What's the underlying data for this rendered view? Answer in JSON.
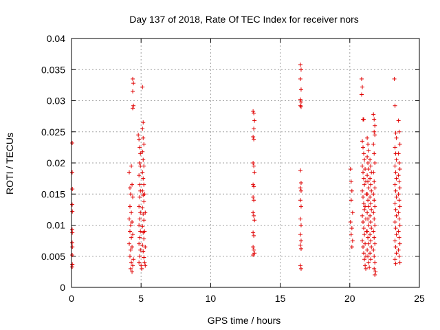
{
  "chart_data": {
    "type": "scatter",
    "title": "Day 137 of 2018, Rate Of TEC Index for receiver nors",
    "xlabel": "GPS time / hours",
    "ylabel": "ROTI / TECUs",
    "xlim": [
      0,
      25
    ],
    "ylim": [
      0,
      0.04
    ],
    "x_ticks": [
      0,
      5,
      10,
      15,
      20,
      25
    ],
    "x_tick_labels": [
      "0",
      "5",
      "10",
      "15",
      "20",
      "25"
    ],
    "y_ticks": [
      0,
      0.005,
      0.01,
      0.015,
      0.02,
      0.025,
      0.03,
      0.035,
      0.04
    ],
    "y_tick_labels": [
      "0",
      "0.005",
      "0.01",
      "0.015",
      "0.02",
      "0.025",
      "0.03",
      "0.035",
      "0.04"
    ],
    "grid": true,
    "marker": "+",
    "color": "#e00000",
    "series": [
      {
        "name": "ROTI",
        "points": [
          [
            0.05,
            0.0232
          ],
          [
            0.05,
            0.0185
          ],
          [
            0.06,
            0.0158
          ],
          [
            0.05,
            0.0133
          ],
          [
            0.06,
            0.0122
          ],
          [
            0.05,
            0.0093
          ],
          [
            0.06,
            0.0088
          ],
          [
            0.05,
            0.0072
          ],
          [
            0.06,
            0.0065
          ],
          [
            0.05,
            0.0052
          ],
          [
            0.06,
            0.0037
          ],
          [
            0.05,
            0.0033
          ],
          [
            4.15,
            0.0185
          ],
          [
            4.2,
            0.016
          ],
          [
            4.25,
            0.015
          ],
          [
            4.2,
            0.013
          ],
          [
            4.3,
            0.012
          ],
          [
            4.15,
            0.011
          ],
          [
            4.25,
            0.01
          ],
          [
            4.2,
            0.009
          ],
          [
            4.3,
            0.008
          ],
          [
            4.15,
            0.007
          ],
          [
            4.25,
            0.006
          ],
          [
            4.2,
            0.005
          ],
          [
            4.3,
            0.004
          ],
          [
            4.25,
            0.003
          ],
          [
            4.35,
            0.0025
          ],
          [
            4.4,
            0.0335
          ],
          [
            4.45,
            0.0328
          ],
          [
            4.4,
            0.0315
          ],
          [
            4.45,
            0.0292
          ],
          [
            4.4,
            0.0288
          ],
          [
            4.3,
            0.0195
          ],
          [
            4.35,
            0.0165
          ],
          [
            4.4,
            0.0145
          ],
          [
            4.35,
            0.0105
          ],
          [
            4.4,
            0.0085
          ],
          [
            4.35,
            0.0065
          ],
          [
            4.45,
            0.0045
          ],
          [
            4.4,
            0.0035
          ],
          [
            4.8,
            0.0245
          ],
          [
            4.85,
            0.0238
          ],
          [
            4.9,
            0.0225
          ],
          [
            4.95,
            0.0215
          ],
          [
            4.9,
            0.02
          ],
          [
            4.95,
            0.0195
          ],
          [
            4.85,
            0.018
          ],
          [
            4.9,
            0.0165
          ],
          [
            4.95,
            0.0155
          ],
          [
            4.9,
            0.0145
          ],
          [
            4.85,
            0.013
          ],
          [
            4.95,
            0.012
          ],
          [
            4.9,
            0.011
          ],
          [
            4.85,
            0.01
          ],
          [
            4.95,
            0.009
          ],
          [
            4.9,
            0.008
          ],
          [
            4.85,
            0.007
          ],
          [
            4.95,
            0.006
          ],
          [
            4.9,
            0.005
          ],
          [
            4.85,
            0.004
          ],
          [
            5.0,
            0.0035
          ],
          [
            5.05,
            0.003
          ],
          [
            5.1,
            0.0322
          ],
          [
            5.15,
            0.0265
          ],
          [
            5.1,
            0.0255
          ],
          [
            5.15,
            0.024
          ],
          [
            5.2,
            0.023
          ],
          [
            5.1,
            0.0218
          ],
          [
            5.15,
            0.0205
          ],
          [
            5.2,
            0.0195
          ],
          [
            5.1,
            0.0185
          ],
          [
            5.15,
            0.0175
          ],
          [
            5.2,
            0.0165
          ],
          [
            5.1,
            0.0155
          ],
          [
            5.15,
            0.0148
          ],
          [
            5.2,
            0.0138
          ],
          [
            5.1,
            0.0128
          ],
          [
            5.15,
            0.0118
          ],
          [
            5.2,
            0.0108
          ],
          [
            5.1,
            0.0098
          ],
          [
            5.15,
            0.0088
          ],
          [
            5.2,
            0.0078
          ],
          [
            5.1,
            0.0068
          ],
          [
            5.15,
            0.0058
          ],
          [
            5.2,
            0.0048
          ],
          [
            5.25,
            0.004
          ],
          [
            5.3,
            0.0035
          ],
          [
            5.25,
            0.015
          ],
          [
            5.3,
            0.012
          ],
          [
            5.25,
            0.009
          ],
          [
            5.3,
            0.0065
          ],
          [
            13.05,
            0.0283
          ],
          [
            13.1,
            0.028
          ],
          [
            13.15,
            0.0268
          ],
          [
            13.1,
            0.0255
          ],
          [
            13.05,
            0.0242
          ],
          [
            13.1,
            0.0238
          ],
          [
            13.05,
            0.02
          ],
          [
            13.1,
            0.0195
          ],
          [
            13.15,
            0.0185
          ],
          [
            13.05,
            0.0165
          ],
          [
            13.1,
            0.0162
          ],
          [
            13.05,
            0.0145
          ],
          [
            13.1,
            0.014
          ],
          [
            13.05,
            0.012
          ],
          [
            13.1,
            0.0115
          ],
          [
            13.15,
            0.0108
          ],
          [
            13.05,
            0.0088
          ],
          [
            13.1,
            0.0083
          ],
          [
            13.05,
            0.0065
          ],
          [
            13.1,
            0.006
          ],
          [
            13.15,
            0.0055
          ],
          [
            13.05,
            0.0052
          ],
          [
            16.45,
            0.0358
          ],
          [
            16.5,
            0.035
          ],
          [
            16.45,
            0.0335
          ],
          [
            16.5,
            0.0318
          ],
          [
            16.45,
            0.0302
          ],
          [
            16.5,
            0.0298
          ],
          [
            16.45,
            0.0292
          ],
          [
            16.5,
            0.029
          ],
          [
            16.45,
            0.0188
          ],
          [
            16.5,
            0.0168
          ],
          [
            16.45,
            0.016
          ],
          [
            16.5,
            0.0155
          ],
          [
            16.45,
            0.014
          ],
          [
            16.5,
            0.013
          ],
          [
            16.45,
            0.011
          ],
          [
            16.5,
            0.01
          ],
          [
            16.45,
            0.0085
          ],
          [
            16.5,
            0.0075
          ],
          [
            16.45,
            0.0068
          ],
          [
            16.5,
            0.0062
          ],
          [
            16.45,
            0.0035
          ],
          [
            16.5,
            0.003
          ],
          [
            20.05,
            0.019
          ],
          [
            20.1,
            0.017
          ],
          [
            20.15,
            0.0155
          ],
          [
            20.1,
            0.014
          ],
          [
            20.2,
            0.012
          ],
          [
            20.05,
            0.0105
          ],
          [
            20.15,
            0.0095
          ],
          [
            20.1,
            0.0085
          ],
          [
            20.2,
            0.0075
          ],
          [
            20.15,
            0.0065
          ],
          [
            20.85,
            0.0335
          ],
          [
            20.9,
            0.0322
          ],
          [
            20.85,
            0.031
          ],
          [
            20.95,
            0.027
          ],
          [
            21.0,
            0.027
          ],
          [
            20.9,
            0.0235
          ],
          [
            20.95,
            0.0225
          ],
          [
            21.0,
            0.0215
          ],
          [
            21.05,
            0.0205
          ],
          [
            20.9,
            0.0195
          ],
          [
            20.95,
            0.0185
          ],
          [
            21.0,
            0.0175
          ],
          [
            21.05,
            0.0165
          ],
          [
            20.9,
            0.0155
          ],
          [
            20.95,
            0.0145
          ],
          [
            21.0,
            0.0135
          ],
          [
            21.05,
            0.0125
          ],
          [
            20.9,
            0.0115
          ],
          [
            20.95,
            0.0105
          ],
          [
            21.0,
            0.0095
          ],
          [
            21.05,
            0.0085
          ],
          [
            20.9,
            0.0075
          ],
          [
            20.95,
            0.0065
          ],
          [
            21.0,
            0.0055
          ],
          [
            21.05,
            0.0045
          ],
          [
            21.1,
            0.0035
          ],
          [
            21.15,
            0.003
          ],
          [
            21.1,
            0.019
          ],
          [
            21.15,
            0.017
          ],
          [
            21.2,
            0.015
          ],
          [
            21.1,
            0.013
          ],
          [
            21.15,
            0.011
          ],
          [
            21.2,
            0.009
          ],
          [
            21.1,
            0.007
          ],
          [
            21.15,
            0.005
          ],
          [
            21.25,
            0.024
          ],
          [
            21.3,
            0.023
          ],
          [
            21.35,
            0.022
          ],
          [
            21.25,
            0.021
          ],
          [
            21.3,
            0.02
          ],
          [
            21.35,
            0.019
          ],
          [
            21.25,
            0.018
          ],
          [
            21.3,
            0.017
          ],
          [
            21.35,
            0.016
          ],
          [
            21.25,
            0.015
          ],
          [
            21.3,
            0.014
          ],
          [
            21.35,
            0.013
          ],
          [
            21.25,
            0.012
          ],
          [
            21.3,
            0.011
          ],
          [
            21.35,
            0.01
          ],
          [
            21.25,
            0.009
          ],
          [
            21.3,
            0.008
          ],
          [
            21.35,
            0.007
          ],
          [
            21.25,
            0.006
          ],
          [
            21.3,
            0.005
          ],
          [
            21.35,
            0.004
          ],
          [
            21.4,
            0.0032
          ],
          [
            21.45,
            0.0205
          ],
          [
            21.5,
            0.0195
          ],
          [
            21.55,
            0.0185
          ],
          [
            21.45,
            0.0175
          ],
          [
            21.5,
            0.0165
          ],
          [
            21.55,
            0.0155
          ],
          [
            21.45,
            0.0145
          ],
          [
            21.5,
            0.0135
          ],
          [
            21.55,
            0.0125
          ],
          [
            21.45,
            0.0115
          ],
          [
            21.5,
            0.0105
          ],
          [
            21.55,
            0.0095
          ],
          [
            21.45,
            0.0085
          ],
          [
            21.5,
            0.0075
          ],
          [
            21.55,
            0.0065
          ],
          [
            21.45,
            0.0055
          ],
          [
            21.5,
            0.0045
          ],
          [
            21.7,
            0.0278
          ],
          [
            21.75,
            0.027
          ],
          [
            21.8,
            0.026
          ],
          [
            21.75,
            0.025
          ],
          [
            21.8,
            0.0245
          ],
          [
            21.7,
            0.023
          ],
          [
            21.75,
            0.0215
          ],
          [
            21.8,
            0.02
          ],
          [
            21.7,
            0.0185
          ],
          [
            21.75,
            0.017
          ],
          [
            21.8,
            0.016
          ],
          [
            21.7,
            0.015
          ],
          [
            21.75,
            0.014
          ],
          [
            21.8,
            0.013
          ],
          [
            21.7,
            0.012
          ],
          [
            21.75,
            0.011
          ],
          [
            21.8,
            0.01
          ],
          [
            21.7,
            0.009
          ],
          [
            21.75,
            0.008
          ],
          [
            21.8,
            0.007
          ],
          [
            21.7,
            0.006
          ],
          [
            21.75,
            0.005
          ],
          [
            21.8,
            0.004
          ],
          [
            21.75,
            0.003
          ],
          [
            21.8,
            0.002
          ],
          [
            21.85,
            0.0025
          ],
          [
            23.2,
            0.0335
          ],
          [
            23.25,
            0.0292
          ],
          [
            23.3,
            0.0248
          ],
          [
            23.35,
            0.024
          ],
          [
            23.25,
            0.0225
          ],
          [
            23.3,
            0.0215
          ],
          [
            23.35,
            0.0205
          ],
          [
            23.25,
            0.0195
          ],
          [
            23.3,
            0.0185
          ],
          [
            23.35,
            0.0175
          ],
          [
            23.25,
            0.0165
          ],
          [
            23.3,
            0.0155
          ],
          [
            23.35,
            0.0145
          ],
          [
            23.25,
            0.0135
          ],
          [
            23.3,
            0.0125
          ],
          [
            23.35,
            0.0115
          ],
          [
            23.25,
            0.0105
          ],
          [
            23.3,
            0.0095
          ],
          [
            23.35,
            0.0085
          ],
          [
            23.25,
            0.0075
          ],
          [
            23.3,
            0.0065
          ],
          [
            23.35,
            0.0055
          ],
          [
            23.25,
            0.0045
          ],
          [
            23.3,
            0.0038
          ],
          [
            23.5,
            0.0268
          ],
          [
            23.55,
            0.025
          ],
          [
            23.6,
            0.023
          ],
          [
            23.5,
            0.0215
          ],
          [
            23.55,
            0.02
          ],
          [
            23.6,
            0.019
          ],
          [
            23.5,
            0.018
          ],
          [
            23.55,
            0.017
          ],
          [
            23.6,
            0.016
          ],
          [
            23.5,
            0.015
          ],
          [
            23.55,
            0.014
          ],
          [
            23.6,
            0.013
          ],
          [
            23.5,
            0.012
          ],
          [
            23.55,
            0.011
          ],
          [
            23.6,
            0.01
          ],
          [
            23.5,
            0.009
          ],
          [
            23.55,
            0.008
          ],
          [
            23.6,
            0.007
          ],
          [
            23.5,
            0.006
          ],
          [
            23.55,
            0.005
          ],
          [
            23.6,
            0.004
          ]
        ]
      }
    ]
  }
}
